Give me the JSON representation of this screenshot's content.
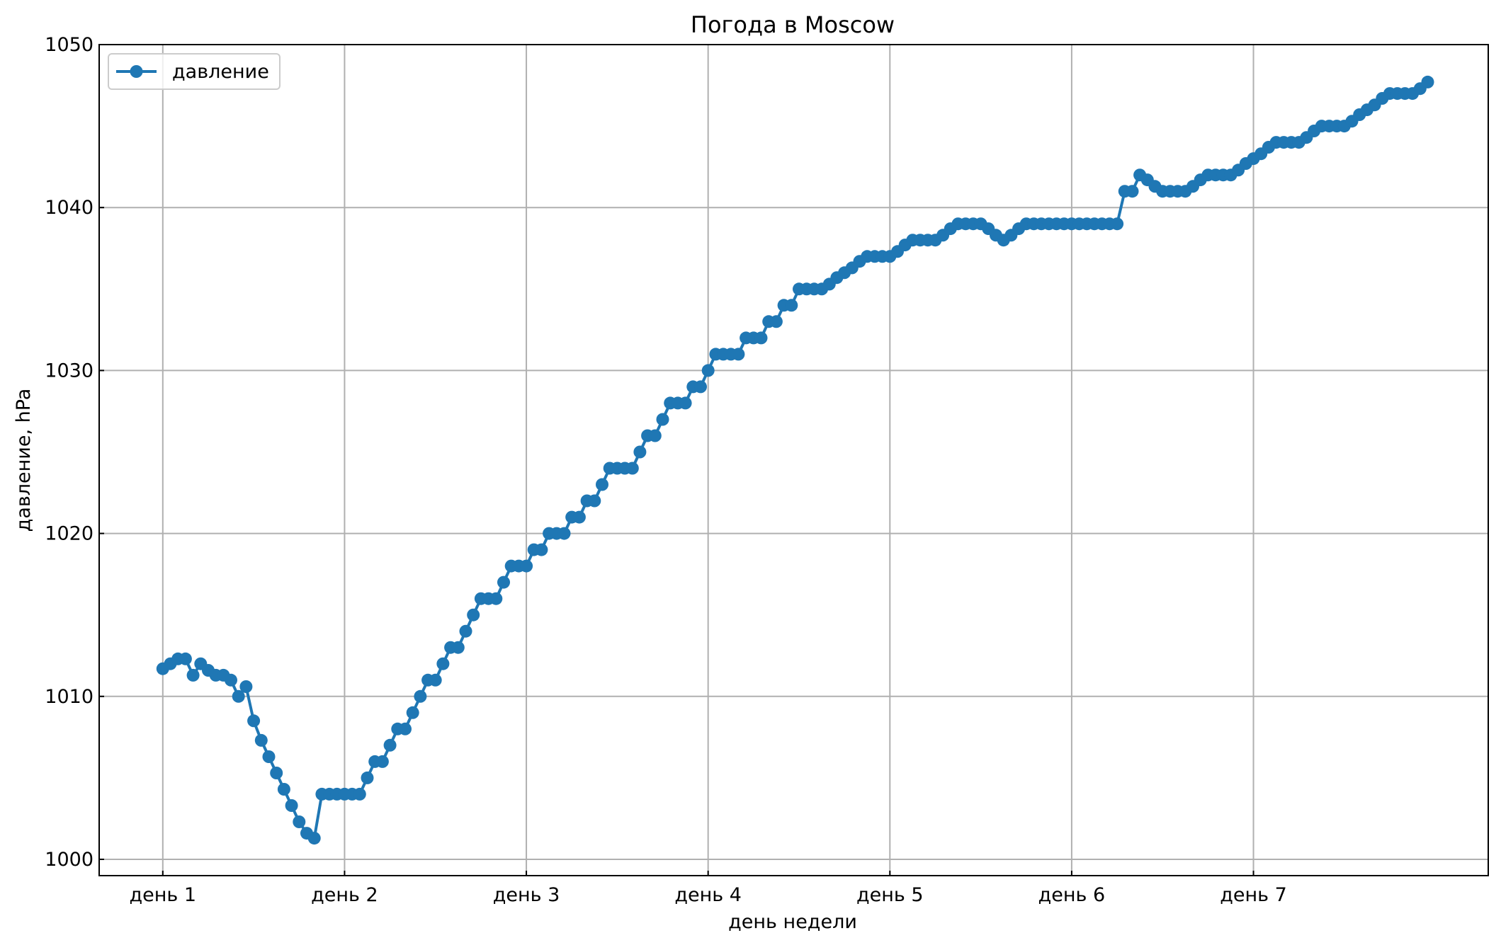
{
  "chart_data": {
    "type": "line",
    "title": "Погода в Moscow",
    "xlabel": "день недели",
    "ylabel": "давление, hPa",
    "grid": true,
    "legend": "top-left",
    "color": "#1f77b4",
    "marker": "circle",
    "x_ticks": [
      {
        "value": 0,
        "label": "день 1"
      },
      {
        "value": 24,
        "label": "день 2"
      },
      {
        "value": 48,
        "label": "день 3"
      },
      {
        "value": 72,
        "label": "день 4"
      },
      {
        "value": 96,
        "label": "день 5"
      },
      {
        "value": 120,
        "label": "день 6"
      },
      {
        "value": 144,
        "label": "день 7"
      }
    ],
    "xlim": [
      -8.4,
      175
    ],
    "y_ticks": [
      1000,
      1010,
      1020,
      1030,
      1040,
      1050
    ],
    "ylim": [
      999,
      1050
    ],
    "series": [
      {
        "name": "давление",
        "x_step_hours": 1,
        "values": [
          1011.7,
          1012.0,
          1012.3,
          1012.3,
          1011.3,
          1012.0,
          1011.6,
          1011.3,
          1011.3,
          1011.0,
          1010.0,
          1010.6,
          1008.5,
          1007.3,
          1006.3,
          1005.3,
          1004.3,
          1003.3,
          1002.3,
          1001.6,
          1001.3,
          1004.0,
          1004.0,
          1004.0,
          1004.0,
          1004.0,
          1004.0,
          1005.0,
          1006.0,
          1006.0,
          1007.0,
          1008.0,
          1008.0,
          1009.0,
          1010.0,
          1011.0,
          1011.0,
          1012.0,
          1013.0,
          1013.0,
          1014.0,
          1015.0,
          1016.0,
          1016.0,
          1016.0,
          1017.0,
          1018.0,
          1018.0,
          1018.0,
          1019.0,
          1019.0,
          1020.0,
          1020.0,
          1020.0,
          1021.0,
          1021.0,
          1022.0,
          1022.0,
          1023.0,
          1024.0,
          1024.0,
          1024.0,
          1024.0,
          1025.0,
          1026.0,
          1026.0,
          1027.0,
          1028.0,
          1028.0,
          1028.0,
          1029.0,
          1029.0,
          1030.0,
          1031.0,
          1031.0,
          1031.0,
          1031.0,
          1032.0,
          1032.0,
          1032.0,
          1033.0,
          1033.0,
          1034.0,
          1034.0,
          1035.0,
          1035.0,
          1035.0,
          1035.0,
          1035.3,
          1035.7,
          1036.0,
          1036.3,
          1036.7,
          1037.0,
          1037.0,
          1037.0,
          1037.0,
          1037.3,
          1037.7,
          1038.0,
          1038.0,
          1038.0,
          1038.0,
          1038.3,
          1038.7,
          1039.0,
          1039.0,
          1039.0,
          1039.0,
          1038.7,
          1038.3,
          1038.0,
          1038.3,
          1038.7,
          1039.0,
          1039.0,
          1039.0,
          1039.0,
          1039.0,
          1039.0,
          1039.0,
          1039.0,
          1039.0,
          1039.0,
          1039.0,
          1039.0,
          1039.0,
          1041.0,
          1041.0,
          1042.0,
          1041.7,
          1041.3,
          1041.0,
          1041.0,
          1041.0,
          1041.0,
          1041.3,
          1041.7,
          1042.0,
          1042.0,
          1042.0,
          1042.0,
          1042.3,
          1042.7,
          1043.0,
          1043.3,
          1043.7,
          1044.0,
          1044.0,
          1044.0,
          1044.0,
          1044.3,
          1044.7,
          1045.0,
          1045.0,
          1045.0,
          1045.0,
          1045.3,
          1045.7,
          1046.0,
          1046.3,
          1046.7,
          1047.0,
          1047.0,
          1047.0,
          1047.0,
          1047.3,
          1047.7
        ]
      }
    ]
  }
}
